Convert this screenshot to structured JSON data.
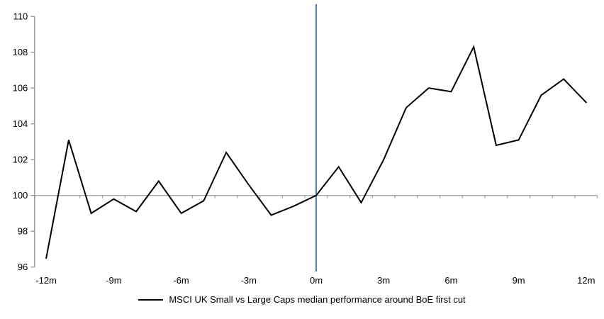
{
  "chart_data": {
    "type": "line",
    "title": "",
    "xlabel": "",
    "ylabel": "",
    "grid": "off",
    "x": [
      -12,
      -11,
      -10,
      -9,
      -8,
      -7,
      -6,
      -5,
      -4,
      -3,
      -2,
      -1,
      0,
      1,
      2,
      3,
      4,
      5,
      6,
      7,
      8,
      9,
      10,
      11,
      12
    ],
    "series": [
      {
        "name": "MSCI UK Small vs Large Caps median performance around BoE first cut",
        "color": "#000000",
        "values": [
          96.5,
          103.1,
          99.0,
          99.8,
          99.1,
          100.8,
          99.0,
          99.7,
          102.4,
          100.6,
          98.9,
          99.4,
          100.0,
          101.6,
          99.6,
          102.0,
          104.9,
          106.0,
          105.8,
          108.3,
          102.8,
          103.1,
          105.6,
          106.5,
          105.2
        ]
      }
    ],
    "ylim": [
      96,
      110
    ],
    "ytick_values": [
      110,
      108,
      106,
      104,
      102,
      100,
      98,
      96
    ],
    "ytick_labels": [
      "110",
      "108",
      "106",
      "104",
      "102",
      "100",
      "98",
      "96"
    ],
    "xtick_months": [
      -12,
      -9,
      -6,
      -3,
      0,
      3,
      6,
      9,
      12
    ],
    "xtick_labels": [
      "-12m",
      "-9m",
      "-6m",
      "-3m",
      "0m",
      "3m",
      "6m",
      "9m",
      "12m"
    ],
    "baseline": {
      "value": 100,
      "color": "#a8a8a8"
    },
    "event_line": {
      "month": 0,
      "color": "#4a7ebb"
    },
    "axis_color": "#8f8f8f",
    "text_color": "#000000",
    "legend": {
      "position": "bottom-center",
      "label": "MSCI UK Small vs Large Caps median performance around BoE first cut"
    }
  }
}
